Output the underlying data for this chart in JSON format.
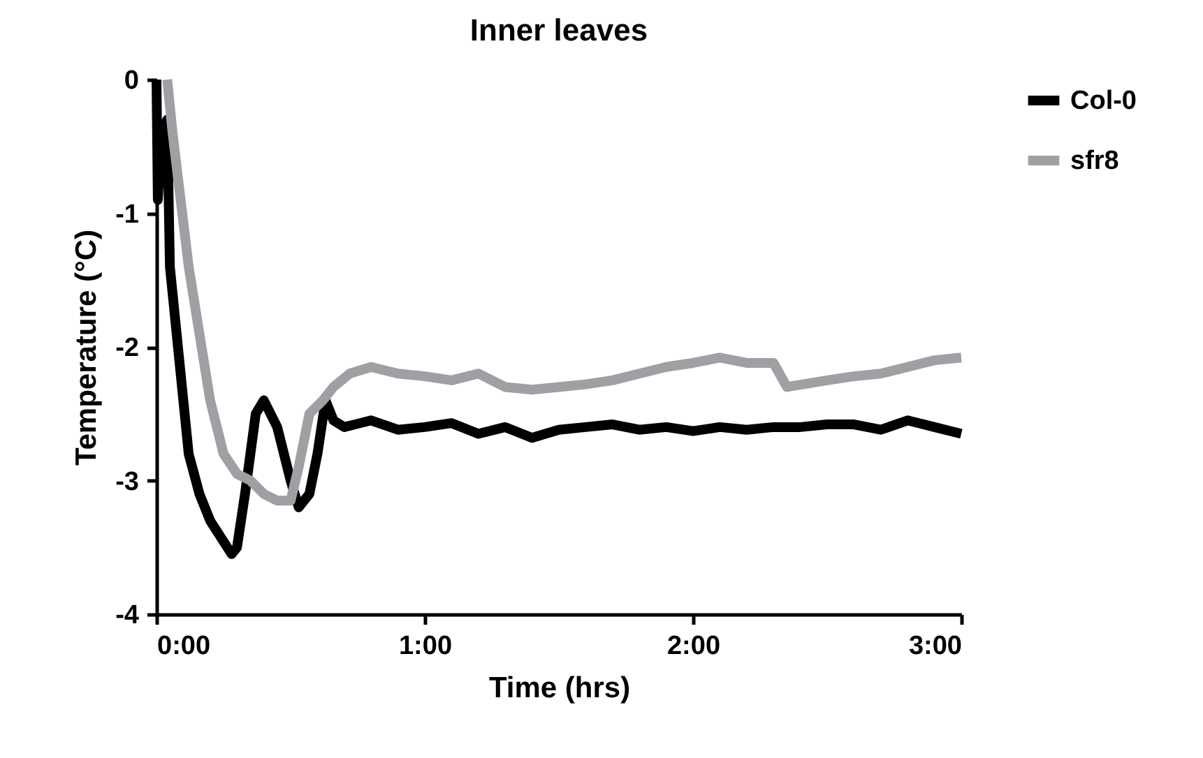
{
  "chart_data": {
    "type": "line",
    "title": "Inner leaves",
    "xlabel": "Time (hrs)",
    "ylabel": "Temperature (°C)",
    "xlim": [
      0,
      3
    ],
    "xticks": [
      {
        "value": 0,
        "label": "0:00"
      },
      {
        "value": 1,
        "label": "1:00"
      },
      {
        "value": 2,
        "label": "2:00"
      },
      {
        "value": 3,
        "label": "3:00"
      }
    ],
    "ylim": [
      -4,
      0
    ],
    "yticks": [
      -4,
      -3,
      -2,
      -1,
      0
    ],
    "grid": false,
    "legend": "right",
    "marker": "none",
    "line_style": "solid",
    "series": [
      {
        "name": "Col-0",
        "color": "#000000",
        "x": [
          0,
          0.005,
          0.02,
          0.04,
          0.05,
          0.07,
          0.09,
          0.12,
          0.16,
          0.2,
          0.28,
          0.3,
          0.33,
          0.37,
          0.4,
          0.45,
          0.5,
          0.53,
          0.57,
          0.6,
          0.63,
          0.66,
          0.7,
          0.8,
          0.9,
          1.0,
          1.1,
          1.2,
          1.3,
          1.4,
          1.5,
          1.6,
          1.7,
          1.8,
          1.9,
          2.0,
          2.1,
          2.2,
          2.3,
          2.4,
          2.5,
          2.6,
          2.7,
          2.8,
          2.9,
          3.0
        ],
        "values": [
          0,
          -0.9,
          -0.4,
          -0.3,
          -1.4,
          -1.8,
          -2.2,
          -2.8,
          -3.1,
          -3.3,
          -3.55,
          -3.5,
          -3.1,
          -2.5,
          -2.4,
          -2.6,
          -3.0,
          -3.2,
          -3.1,
          -2.8,
          -2.4,
          -2.55,
          -2.6,
          -2.55,
          -2.62,
          -2.6,
          -2.57,
          -2.65,
          -2.6,
          -2.68,
          -2.62,
          -2.6,
          -2.58,
          -2.62,
          -2.6,
          -2.63,
          -2.6,
          -2.62,
          -2.6,
          -2.6,
          -2.58,
          -2.58,
          -2.62,
          -2.55,
          -2.6,
          -2.65
        ]
      },
      {
        "name": "sfr8",
        "color": "#a0a0a4",
        "x": [
          0.04,
          0.06,
          0.09,
          0.12,
          0.16,
          0.2,
          0.25,
          0.3,
          0.35,
          0.4,
          0.45,
          0.5,
          0.53,
          0.57,
          0.62,
          0.66,
          0.72,
          0.8,
          0.9,
          1.0,
          1.1,
          1.2,
          1.3,
          1.4,
          1.5,
          1.6,
          1.7,
          1.8,
          1.9,
          2.0,
          2.1,
          2.2,
          2.3,
          2.35,
          2.5,
          2.6,
          2.7,
          2.8,
          2.9,
          3.0
        ],
        "values": [
          0,
          -0.4,
          -0.9,
          -1.4,
          -1.9,
          -2.4,
          -2.8,
          -2.95,
          -3.0,
          -3.1,
          -3.15,
          -3.15,
          -2.9,
          -2.5,
          -2.4,
          -2.3,
          -2.2,
          -2.15,
          -2.2,
          -2.22,
          -2.25,
          -2.2,
          -2.3,
          -2.32,
          -2.3,
          -2.28,
          -2.25,
          -2.2,
          -2.15,
          -2.12,
          -2.08,
          -2.12,
          -2.12,
          -2.3,
          -2.25,
          -2.22,
          -2.2,
          -2.15,
          -2.1,
          -2.08
        ]
      }
    ]
  }
}
